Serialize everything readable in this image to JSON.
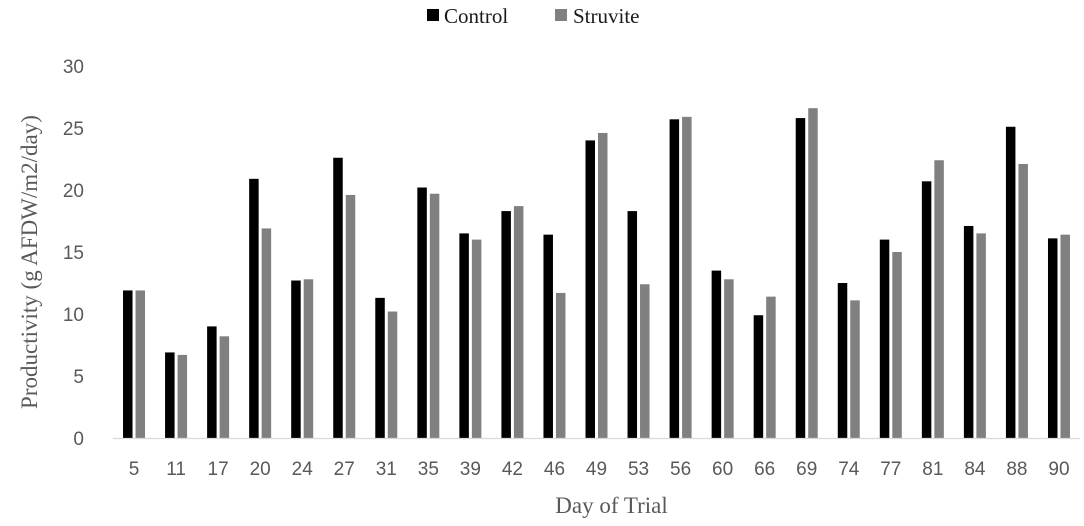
{
  "chart_data": {
    "type": "bar",
    "xlabel": "Day of Trial",
    "ylabel": "Productivity (g AFDW/m2/day)",
    "ylim": [
      0,
      30
    ],
    "yticks": [
      "0",
      "5",
      "10",
      "15",
      "20",
      "25",
      "30"
    ],
    "grid": false,
    "legend_position": "top-center",
    "categories": [
      "5",
      "11",
      "17",
      "20",
      "24",
      "27",
      "31",
      "35",
      "39",
      "42",
      "46",
      "49",
      "53",
      "56",
      "60",
      "66",
      "69",
      "74",
      "77",
      "81",
      "84",
      "88",
      "90"
    ],
    "series": [
      {
        "name": "Control",
        "color": "#000000",
        "values": [
          11.9,
          6.9,
          9.0,
          20.9,
          12.7,
          22.6,
          11.3,
          20.2,
          16.5,
          18.3,
          16.4,
          24.0,
          18.3,
          25.7,
          13.5,
          9.9,
          25.8,
          12.5,
          16.0,
          20.7,
          17.1,
          25.1,
          16.1
        ]
      },
      {
        "name": "Struvite",
        "color": "#808080",
        "values": [
          11.9,
          6.7,
          8.2,
          16.9,
          12.8,
          19.6,
          10.2,
          19.7,
          16.0,
          18.7,
          11.7,
          24.6,
          12.4,
          25.9,
          12.8,
          11.4,
          26.6,
          11.1,
          15.0,
          22.4,
          16.5,
          22.1,
          16.4
        ]
      }
    ]
  }
}
